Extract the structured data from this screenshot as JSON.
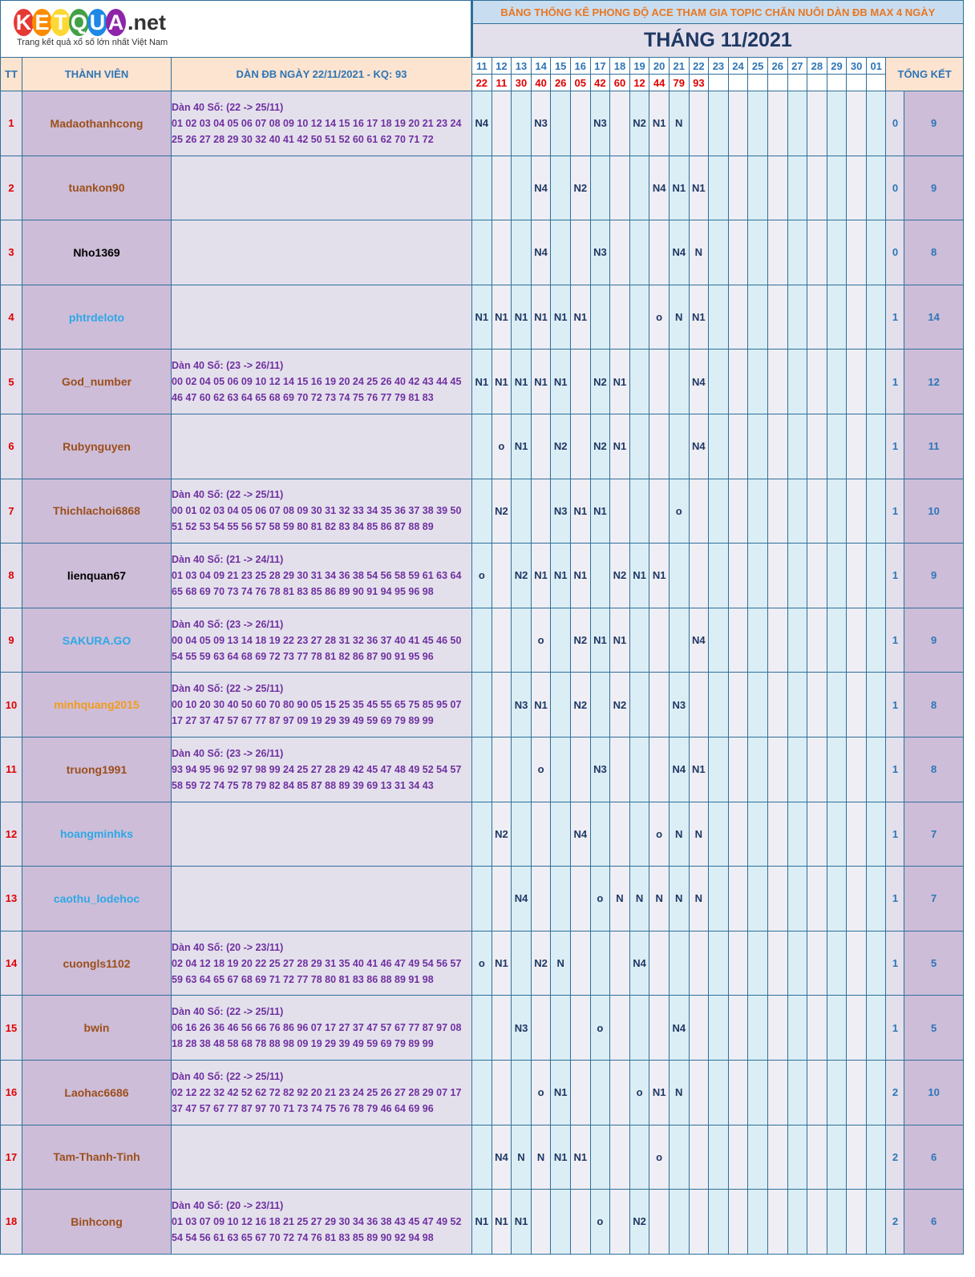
{
  "logo": {
    "letters": [
      {
        "ch": "K",
        "color": "#e53935"
      },
      {
        "ch": "E",
        "color": "#fb8c00"
      },
      {
        "ch": "T",
        "color": "#fdd835"
      },
      {
        "ch": "Q",
        "color": "#43a047"
      },
      {
        "ch": "U",
        "color": "#1e88e5"
      },
      {
        "ch": "A",
        "color": "#8e24aa"
      }
    ],
    "suffix": ".net",
    "tagline": "Trang kết quả xổ số lớn nhất Việt Nam"
  },
  "header": {
    "title": "BẢNG THỐNG KÊ PHONG ĐỘ ACE THAM GIA TOPIC CHĂN NUÔI DÀN ĐB MAX 4 NGÀY",
    "month": "THÁNG 11/2021",
    "col_tt": "TT",
    "col_member": "THÀNH VIÊN",
    "col_dan": "DÀN ĐB NGÀY 22/11/2021 - KQ: 93",
    "col_total": "TỔNG KẾT"
  },
  "days": [
    "11",
    "12",
    "13",
    "14",
    "15",
    "16",
    "17",
    "18",
    "19",
    "20",
    "21",
    "22",
    "23",
    "24",
    "25",
    "26",
    "27",
    "28",
    "29",
    "30",
    "01"
  ],
  "results": [
    "22",
    "11",
    "30",
    "40",
    "26",
    "05",
    "42",
    "60",
    "12",
    "44",
    "79",
    "93",
    "",
    "",
    "",
    "",
    "",
    "",
    "",
    "",
    ""
  ],
  "rows": [
    {
      "tt": "1",
      "name": "Madaothanhcong",
      "color": "#9c4f1c",
      "dan_title": "Dàn 40 Số: (22 -> 25/11)",
      "dan_line1": "01 02 03 04 05 06 07 08 09 10 12 14 15 16 17 18 19 20 21 23 24",
      "dan_line2": "25 26 27 28 29 30 32 40 41 42 50 51 52 60 61 62 70 71 72",
      "cells": [
        "N4",
        "",
        "",
        "N3",
        "",
        "",
        "N3",
        "",
        "N2",
        "N1",
        "N",
        "",
        "",
        "",
        "",
        "",
        "",
        "",
        "",
        "",
        ""
      ],
      "s1": "0",
      "s2": "9"
    },
    {
      "tt": "2",
      "name": "tuankon90",
      "color": "#9c4f1c",
      "dan_title": "",
      "dan_line1": "",
      "dan_line2": "",
      "cells": [
        "",
        "",
        "",
        "N4",
        "",
        "N2",
        "",
        "",
        "",
        "N4",
        "N1",
        "N1",
        "",
        "",
        "",
        "",
        "",
        "",
        "",
        "",
        ""
      ],
      "s1": "0",
      "s2": "9"
    },
    {
      "tt": "3",
      "name": "Nho1369",
      "color": "#000000",
      "dan_title": "",
      "dan_line1": "",
      "dan_line2": "",
      "cells": [
        "",
        "",
        "",
        "N4",
        "",
        "",
        "N3",
        "",
        "",
        "",
        "N4",
        "N",
        "",
        "",
        "",
        "",
        "",
        "",
        "",
        "",
        ""
      ],
      "s1": "0",
      "s2": "8"
    },
    {
      "tt": "4",
      "name": "phtrdeloto",
      "color": "#2ea8e6",
      "dan_title": "",
      "dan_line1": "",
      "dan_line2": "",
      "cells": [
        "N1",
        "N1",
        "N1",
        "N1",
        "N1",
        "N1",
        "",
        "",
        "",
        "o",
        "N",
        "N1",
        "",
        "",
        "",
        "",
        "",
        "",
        "",
        "",
        ""
      ],
      "s1": "1",
      "s2": "14"
    },
    {
      "tt": "5",
      "name": "God_number",
      "color": "#9c4f1c",
      "dan_title": "Dàn 40 Số: (23 -> 26/11)",
      "dan_line1": "00 02 04 05 06 09 10 12 14 15 16 19 20 24 25 26 40 42 43 44 45",
      "dan_line2": "46 47 60 62 63 64 65 68 69 70 72 73 74 75 76 77 79 81 83",
      "cells": [
        "N1",
        "N1",
        "N1",
        "N1",
        "N1",
        "",
        "N2",
        "N1",
        "",
        "",
        "",
        "N4",
        "",
        "",
        "",
        "",
        "",
        "",
        "",
        "",
        ""
      ],
      "s1": "1",
      "s2": "12"
    },
    {
      "tt": "6",
      "name": "Rubynguyen",
      "color": "#9c4f1c",
      "dan_title": "",
      "dan_line1": "",
      "dan_line2": "",
      "cells": [
        "",
        "o",
        "N1",
        "",
        "N2",
        "",
        "N2",
        "N1",
        "",
        "",
        "",
        "N4",
        "",
        "",
        "",
        "",
        "",
        "",
        "",
        "",
        ""
      ],
      "s1": "1",
      "s2": "11"
    },
    {
      "tt": "7",
      "name": "Thichlachoi6868",
      "color": "#9c4f1c",
      "dan_title": "Dàn 40 Số: (22 -> 25/11)",
      "dan_line1": "00 01 02 03 04 05 06 07 08 09 30 31 32 33 34 35 36 37 38 39 50",
      "dan_line2": "51 52 53 54 55 56 57 58 59 80 81 82 83 84 85 86 87 88 89",
      "cells": [
        "",
        "N2",
        "",
        "",
        "N3",
        "N1",
        "N1",
        "",
        "",
        "",
        "o",
        "",
        "",
        "",
        "",
        "",
        "",
        "",
        "",
        "",
        ""
      ],
      "s1": "1",
      "s2": "10"
    },
    {
      "tt": "8",
      "name": "lienquan67",
      "color": "#000000",
      "dan_title": "Dàn 40 Số: (21 -> 24/11)",
      "dan_line1": "01 03 04 09 21 23 25 28 29 30 31 34 36 38 54 56 58 59 61 63 64",
      "dan_line2": "65 68 69 70 73 74 76 78 81 83 85 86 89 90 91 94 95 96 98",
      "cells": [
        "o",
        "",
        "N2",
        "N1",
        "N1",
        "N1",
        "",
        "N2",
        "N1",
        "N1",
        "",
        "",
        "",
        "",
        "",
        "",
        "",
        "",
        "",
        "",
        ""
      ],
      "s1": "1",
      "s2": "9"
    },
    {
      "tt": "9",
      "name": "SAKURA.GO",
      "color": "#2ea8e6",
      "dan_title": "Dàn 40 Số: (23 -> 26/11)",
      "dan_line1": "00 04 05 09 13 14 18 19 22 23 27 28 31 32 36 37 40 41 45 46 50",
      "dan_line2": "54 55 59 63 64 68 69 72 73 77 78 81 82 86 87 90 91 95 96",
      "cells": [
        "",
        "",
        "",
        "o",
        "",
        "N2",
        "N1",
        "N1",
        "",
        "",
        "",
        "N4",
        "",
        "",
        "",
        "",
        "",
        "",
        "",
        "",
        ""
      ],
      "s1": "1",
      "s2": "9"
    },
    {
      "tt": "10",
      "name": "minhquang2015",
      "color": "#f29b1d",
      "dan_title": "Dàn 40 Số: (22 -> 25/11)",
      "dan_line1": "00 10 20 30 40 50 60 70 80 90 05 15 25 35 45 55 65 75 85 95 07",
      "dan_line2": "17 27 37 47 57 67 77 87 97 09 19 29 39 49 59 69 79 89 99",
      "cells": [
        "",
        "",
        "N3",
        "N1",
        "",
        "N2",
        "",
        "N2",
        "",
        "",
        "N3",
        "",
        "",
        "",
        "",
        "",
        "",
        "",
        "",
        "",
        ""
      ],
      "s1": "1",
      "s2": "8"
    },
    {
      "tt": "11",
      "name": "truong1991",
      "color": "#9c4f1c",
      "dan_title": "Dàn 40 Số: (23 -> 26/11)",
      "dan_line1": "93 94 95 96 92 97 98 99 24 25 27 28 29 42 45 47 48 49 52 54 57",
      "dan_line2": "58 59 72 74 75 78 79 82 84 85 87 88 89 39 69 13 31 34 43",
      "cells": [
        "",
        "",
        "",
        "o",
        "",
        "",
        "N3",
        "",
        "",
        "",
        "N4",
        "N1",
        "",
        "",
        "",
        "",
        "",
        "",
        "",
        "",
        ""
      ],
      "s1": "1",
      "s2": "8"
    },
    {
      "tt": "12",
      "name": "hoangminhks",
      "color": "#2ea8e6",
      "dan_title": "",
      "dan_line1": "",
      "dan_line2": "",
      "cells": [
        "",
        "N2",
        "",
        "",
        "",
        "N4",
        "",
        "",
        "",
        "o",
        "N",
        "N",
        "",
        "",
        "",
        "",
        "",
        "",
        "",
        "",
        ""
      ],
      "s1": "1",
      "s2": "7"
    },
    {
      "tt": "13",
      "name": "caothu_lodehoc",
      "color": "#2ea8e6",
      "dan_title": "",
      "dan_line1": "",
      "dan_line2": "",
      "cells": [
        "",
        "",
        "N4",
        "",
        "",
        "",
        "o",
        "N",
        "N",
        "N",
        "N",
        "N",
        "",
        "",
        "",
        "",
        "",
        "",
        "",
        "",
        ""
      ],
      "s1": "1",
      "s2": "7"
    },
    {
      "tt": "14",
      "name": "cuongls1102",
      "color": "#9c4f1c",
      "dan_title": "Dàn 40 Số: (20 -> 23/11)",
      "dan_line1": "02 04 12 18 19 20 22 25 27 28 29 31 35 40 41 46 47 49 54 56 57",
      "dan_line2": "59 63 64 65 67 68 69 71 72 77 78 80 81 83 86 88 89 91 98",
      "cells": [
        "o",
        "N1",
        "",
        "N2",
        "N",
        "",
        "",
        "",
        "N4",
        "",
        "",
        "",
        "",
        "",
        "",
        "",
        "",
        "",
        "",
        "",
        ""
      ],
      "s1": "1",
      "s2": "5"
    },
    {
      "tt": "15",
      "name": "bwin",
      "color": "#9c4f1c",
      "dan_title": "Dàn 40 Số: (22 -> 25/11)",
      "dan_line1": "06 16 26 36 46 56 66 76 86 96 07 17 27 37 47 57 67 77 87 97 08",
      "dan_line2": "18 28 38 48 58 68 78 88 98 09 19 29 39 49 59 69 79 89 99",
      "cells": [
        "",
        "",
        "N3",
        "",
        "",
        "",
        "o",
        "",
        "",
        "",
        "N4",
        "",
        "",
        "",
        "",
        "",
        "",
        "",
        "",
        "",
        ""
      ],
      "s1": "1",
      "s2": "5"
    },
    {
      "tt": "16",
      "name": "Laohac6686",
      "color": "#9c4f1c",
      "dan_title": "Dàn 40 Số: (22 -> 25/11)",
      "dan_line1": "02 12 22 32 42 52 62 72 82 92 20 21 23 24 25 26 27 28 29 07 17",
      "dan_line2": "37 47 57 67 77 87 97 70 71 73 74 75 76 78 79 46 64 69 96",
      "cells": [
        "",
        "",
        "",
        "o",
        "N1",
        "",
        "",
        "",
        "o",
        "N1",
        "N",
        "",
        "",
        "",
        "",
        "",
        "",
        "",
        "",
        "",
        ""
      ],
      "s1": "2",
      "s2": "10"
    },
    {
      "tt": "17",
      "name": "Tam-Thanh-Tinh",
      "color": "#9c4f1c",
      "dan_title": "",
      "dan_line1": "",
      "dan_line2": "",
      "cells": [
        "",
        "N4",
        "N",
        "N",
        "N1",
        "N1",
        "",
        "",
        "",
        "o",
        "",
        "",
        "",
        "",
        "",
        "",
        "",
        "",
        "",
        "",
        ""
      ],
      "s1": "2",
      "s2": "6"
    },
    {
      "tt": "18",
      "name": "Binhcong",
      "color": "#9c4f1c",
      "dan_title": "Dàn 40 Số: (20 -> 23/11)",
      "dan_line1": "01 03 07 09 10 12 16 18 21 25 27 29 30 34 36 38 43 45 47 49 52",
      "dan_line2": "54 54 56 61 63 65 67 70 72 74 76 81 83 85 89 90 92 94 98",
      "cells": [
        "N1",
        "N1",
        "N1",
        "",
        "",
        "",
        "o",
        "",
        "N2",
        "",
        "",
        "",
        "",
        "",
        "",
        "",
        "",
        "",
        "",
        "",
        ""
      ],
      "s1": "2",
      "s2": "6"
    }
  ]
}
